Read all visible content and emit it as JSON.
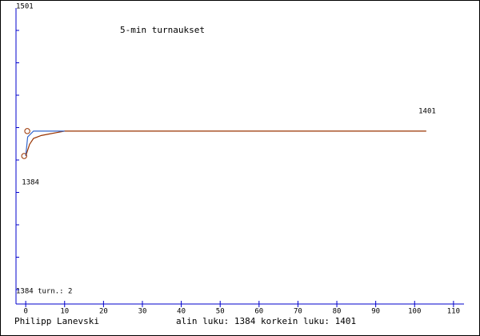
{
  "chart_data": {
    "type": "line",
    "title": "5-min turnaukset",
    "top_label": "1501",
    "bottom_label": "1384 turn.: 2",
    "annotations": [
      {
        "text": "1401",
        "x": 101,
        "y": 1401
      },
      {
        "text": "1384",
        "x": -1,
        "y": 1384
      }
    ],
    "xlim": [
      -2.5,
      112.7
    ],
    "xticks": [
      0,
      10,
      20,
      30,
      40,
      50,
      60,
      70,
      80,
      90,
      100,
      110
    ],
    "ylim": [
      1283,
      1485
    ],
    "axis_color": "#0000cc",
    "series": [
      {
        "color": "#993300",
        "x": [
          0,
          1,
          2,
          4,
          6,
          8,
          10,
          103
        ],
        "values": [
          1384,
          1392,
          1396,
          1398,
          1399,
          1400,
          1401,
          1401
        ]
      },
      {
        "color": "#3366cc",
        "x": [
          0,
          0.5,
          2,
          10
        ],
        "values": [
          1384,
          1397,
          1401,
          1401
        ]
      }
    ],
    "markers": {
      "color": "#993300",
      "x": [
        0.4,
        -0.4
      ],
      "values": [
        1401,
        1384
      ]
    }
  },
  "footer": {
    "name": "Philipp Lanevski",
    "stats": "alin luku: 1384  korkein luku: 1401"
  }
}
